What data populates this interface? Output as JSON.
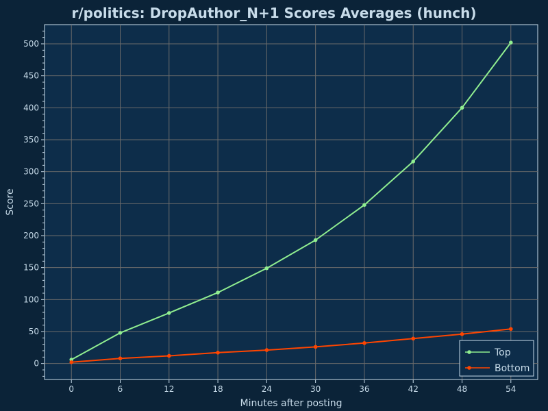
{
  "colors": {
    "background": "#0b2338",
    "plot_area": "#0d2d4a",
    "grid": "#6b6b6b",
    "text": "#c8dcea",
    "top_series": "#90ee90",
    "bottom_series": "#ff4500"
  },
  "chart_data": {
    "type": "line",
    "title": "r/politics: DropAuthor_N+1 Scores Averages (hunch)",
    "xlabel": "Minutes after posting",
    "ylabel": "Score",
    "x": [
      0,
      6,
      12,
      18,
      24,
      30,
      36,
      42,
      48,
      54
    ],
    "xticks": [
      "0",
      "6",
      "12",
      "18",
      "24",
      "30",
      "36",
      "42",
      "48",
      "54"
    ],
    "yticks": [
      "0",
      "50",
      "100",
      "150",
      "200",
      "250",
      "300",
      "350",
      "400",
      "450",
      "500"
    ],
    "xlim": [
      -3.3,
      57.3
    ],
    "ylim": [
      -25,
      530
    ],
    "grid": true,
    "legend": "bottom-right",
    "series": [
      {
        "name": "Top",
        "color": "#90ee90",
        "values": [
          6,
          48,
          79,
          111,
          149,
          193,
          248,
          316,
          400,
          502
        ]
      },
      {
        "name": "Bottom",
        "color": "#ff4500",
        "values": [
          2,
          8,
          12,
          17,
          21,
          26,
          32,
          39,
          46,
          54
        ]
      }
    ]
  }
}
